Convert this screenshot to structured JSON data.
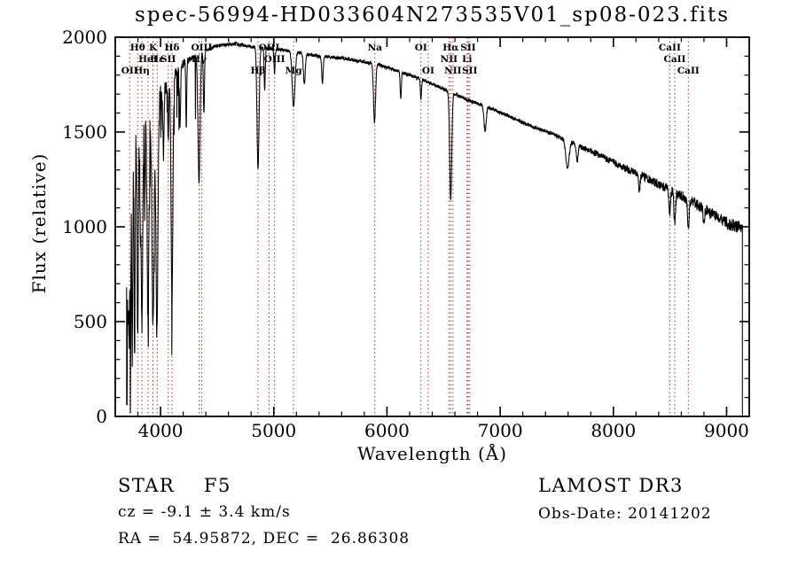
{
  "chart_data": {
    "type": "line",
    "title": "spec-56994-HD033604N273535V01_sp08-023.fits",
    "xlabel": "Wavelength (Å)",
    "ylabel": "Flux (relative)",
    "xlim": [
      3600,
      9200
    ],
    "ylim": [
      0,
      2000
    ],
    "x_major_ticks": [
      4000,
      5000,
      6000,
      7000,
      8000,
      9000
    ],
    "x_minor_step": 200,
    "y_major_ticks": [
      0,
      500,
      1000,
      1500,
      2000
    ],
    "y_minor_step": 100,
    "grid": false,
    "legend": "none",
    "line_color": "#000000",
    "marker_line_color": "#a03232",
    "background": "#ffffff",
    "spectrum_range": [
      3700,
      9140
    ],
    "continuum": [
      [
        3700,
        1350
      ],
      [
        3750,
        1500
      ],
      [
        3800,
        1560
      ],
      [
        3850,
        1600
      ],
      [
        3900,
        1620
      ],
      [
        3950,
        1650
      ],
      [
        4000,
        1700
      ],
      [
        4100,
        1780
      ],
      [
        4200,
        1860
      ],
      [
        4300,
        1900
      ],
      [
        4400,
        1930
      ],
      [
        4500,
        1955
      ],
      [
        4650,
        1965
      ],
      [
        4800,
        1950
      ],
      [
        5000,
        1940
      ],
      [
        5200,
        1920
      ],
      [
        5400,
        1900
      ],
      [
        5600,
        1890
      ],
      [
        5800,
        1870
      ],
      [
        5900,
        1860
      ],
      [
        6000,
        1840
      ],
      [
        6150,
        1810
      ],
      [
        6300,
        1780
      ],
      [
        6450,
        1740
      ],
      [
        6600,
        1700
      ],
      [
        6750,
        1660
      ],
      [
        6900,
        1630
      ],
      [
        7050,
        1590
      ],
      [
        7200,
        1550
      ],
      [
        7350,
        1515
      ],
      [
        7500,
        1480
      ],
      [
        7650,
        1440
      ],
      [
        7800,
        1400
      ],
      [
        7950,
        1355
      ],
      [
        8100,
        1310
      ],
      [
        8250,
        1270
      ],
      [
        8400,
        1225
      ],
      [
        8550,
        1180
      ],
      [
        8700,
        1130
      ],
      [
        8850,
        1075
      ],
      [
        9000,
        1020
      ],
      [
        9140,
        990
      ]
    ],
    "absorption_features": [
      [
        3703,
        1250,
        3
      ],
      [
        3712,
        900,
        4
      ],
      [
        3722,
        1000,
        4
      ],
      [
        3734,
        1120,
        4
      ],
      [
        3750,
        1200,
        5
      ],
      [
        3771,
        1150,
        5
      ],
      [
        3798,
        1100,
        6
      ],
      [
        3820,
        420,
        4
      ],
      [
        3835,
        1150,
        7
      ],
      [
        3860,
        520,
        4
      ],
      [
        3889,
        1100,
        8
      ],
      [
        3933,
        1180,
        9
      ],
      [
        3968,
        1220,
        9
      ],
      [
        4026,
        380,
        5
      ],
      [
        4068,
        300,
        4
      ],
      [
        4101,
        1150,
        8
      ],
      [
        4172,
        320,
        5
      ],
      [
        4227,
        360,
        4
      ],
      [
        4340,
        680,
        9
      ],
      [
        4383,
        320,
        5
      ],
      [
        4861,
        650,
        9
      ],
      [
        4920,
        220,
        5
      ],
      [
        5007,
        130,
        5
      ],
      [
        5175,
        290,
        12
      ],
      [
        5270,
        160,
        8
      ],
      [
        5430,
        140,
        6
      ],
      [
        5890,
        310,
        9
      ],
      [
        6122,
        140,
        5
      ],
      [
        6300,
        110,
        5
      ],
      [
        6563,
        570,
        9
      ],
      [
        6867,
        130,
        10
      ],
      [
        7594,
        150,
        14
      ],
      [
        7680,
        90,
        8
      ],
      [
        8230,
        90,
        6
      ],
      [
        8498,
        120,
        7
      ],
      [
        8542,
        170,
        7
      ],
      [
        8662,
        160,
        7
      ],
      [
        8800,
        80,
        6
      ]
    ],
    "noise": {
      "seed": 12345,
      "base": 9,
      "blue_extra": 110,
      "red_extra": 26,
      "blue_spike_chance": 0.08,
      "blue_spike_depth": 350
    },
    "spectral_lines": [
      {
        "wavelength": 3727,
        "label": "OII",
        "row": 2
      },
      {
        "wavelength": 3798,
        "label": "Hθ",
        "row": 0
      },
      {
        "wavelength": 3835,
        "label": "Hη",
        "row": 2
      },
      {
        "wavelength": 3889,
        "label": "HeI",
        "row": 1
      },
      {
        "wavelength": 3933,
        "label": "K",
        "row": 0
      },
      {
        "wavelength": 3970,
        "label": "Hε",
        "row": 1
      },
      {
        "wavelength": 4068,
        "label": "SII",
        "row": 1
      },
      {
        "wavelength": 4101,
        "label": "Hδ",
        "row": 0
      },
      {
        "wavelength": 4340,
        "label": "Hγ",
        "row": 1
      },
      {
        "wavelength": 4363,
        "label": "OIII",
        "row": 0
      },
      {
        "wavelength": 4861,
        "label": "Hβ",
        "row": 2
      },
      {
        "wavelength": 4959,
        "label": "OIII",
        "row": 0
      },
      {
        "wavelength": 5007,
        "label": "OIII",
        "row": 1
      },
      {
        "wavelength": 5175,
        "label": "Mg",
        "row": 2
      },
      {
        "wavelength": 5893,
        "label": "Na",
        "row": 0
      },
      {
        "wavelength": 6300,
        "label": "OI",
        "row": 0
      },
      {
        "wavelength": 6364,
        "label": "OI",
        "row": 2
      },
      {
        "wavelength": 6548,
        "label": "NII",
        "row": 1
      },
      {
        "wavelength": 6563,
        "label": "Hα",
        "row": 0
      },
      {
        "wavelength": 6583,
        "label": "NII",
        "row": 2
      },
      {
        "wavelength": 6708,
        "label": "Li",
        "row": 1
      },
      {
        "wavelength": 6717,
        "label": "SII",
        "row": 0
      },
      {
        "wavelength": 6731,
        "label": "SII",
        "row": 2
      },
      {
        "wavelength": 8498,
        "label": "CaII",
        "row": 0
      },
      {
        "wavelength": 8542,
        "label": "CaII",
        "row": 1
      },
      {
        "wavelength": 8662,
        "label": "CaII",
        "row": 2
      }
    ]
  },
  "annotations": {
    "class_line": "STAR    F5",
    "cz_line": "cz = -9.1 ± 3.4 km/s",
    "radec_line": "RA =  54.95872, DEC =  26.86308",
    "survey": "LAMOST DR3",
    "obs_date": "Obs-Date: 20141202"
  }
}
